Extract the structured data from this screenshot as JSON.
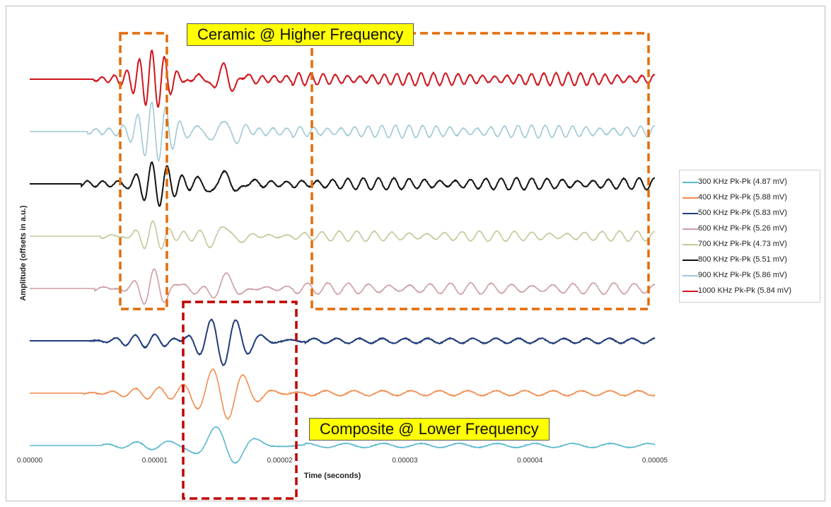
{
  "chart_data": {
    "type": "line",
    "title": "",
    "xlabel": "Time (seconds)",
    "ylabel": "Amplitude (offsets in a.u.)",
    "xlim": [
      0,
      5e-05
    ],
    "x_ticks": [
      "0.00000",
      "0.00001",
      "0.00002",
      "0.00003",
      "0.00004",
      "0.00005"
    ],
    "grid": false,
    "legend_position": "right",
    "series": [
      {
        "name": "300 KHz Pk-Pk (4.87 mV)",
        "color": "#5bb8cf",
        "offset": 0,
        "peak_to_peak_mV": 4.87
      },
      {
        "name": "400 KHz Pk-Pk (5.88 mV)",
        "color": "#f28c4e",
        "offset": 1,
        "peak_to_peak_mV": 5.88
      },
      {
        "name": "500 KHz Pk-Pk (5.83 mV)",
        "color": "#1f3d7a",
        "offset": 2,
        "peak_to_peak_mV": 5.83
      },
      {
        "name": "600 KHz Pk-Pk (5.26 mV)",
        "color": "#cd9ea4",
        "offset": 3,
        "peak_to_peak_mV": 5.26
      },
      {
        "name": "700 KHz Pk-Pk (4.73 mV)",
        "color": "#c6c79a",
        "offset": 4,
        "peak_to_peak_mV": 4.73
      },
      {
        "name": "800 KHz Pk-Pk (5.51 mV)",
        "color": "#111111",
        "offset": 5,
        "peak_to_peak_mV": 5.51
      },
      {
        "name": "900 KHz Pk-Pk (5.86 mV)",
        "color": "#9ec9d6",
        "offset": 6,
        "peak_to_peak_mV": 5.86
      },
      {
        "name": "1000 KHz Pk-Pk (5.84 mV)",
        "color": "#d0141c",
        "offset": 7,
        "peak_to_peak_mV": 5.84
      }
    ],
    "annotations": [
      {
        "text": "Ceramic @ Higher Frequency",
        "color": "#e36c0a"
      },
      {
        "text": "Composite @ Lower Frequency",
        "color": "#c00000"
      }
    ]
  }
}
